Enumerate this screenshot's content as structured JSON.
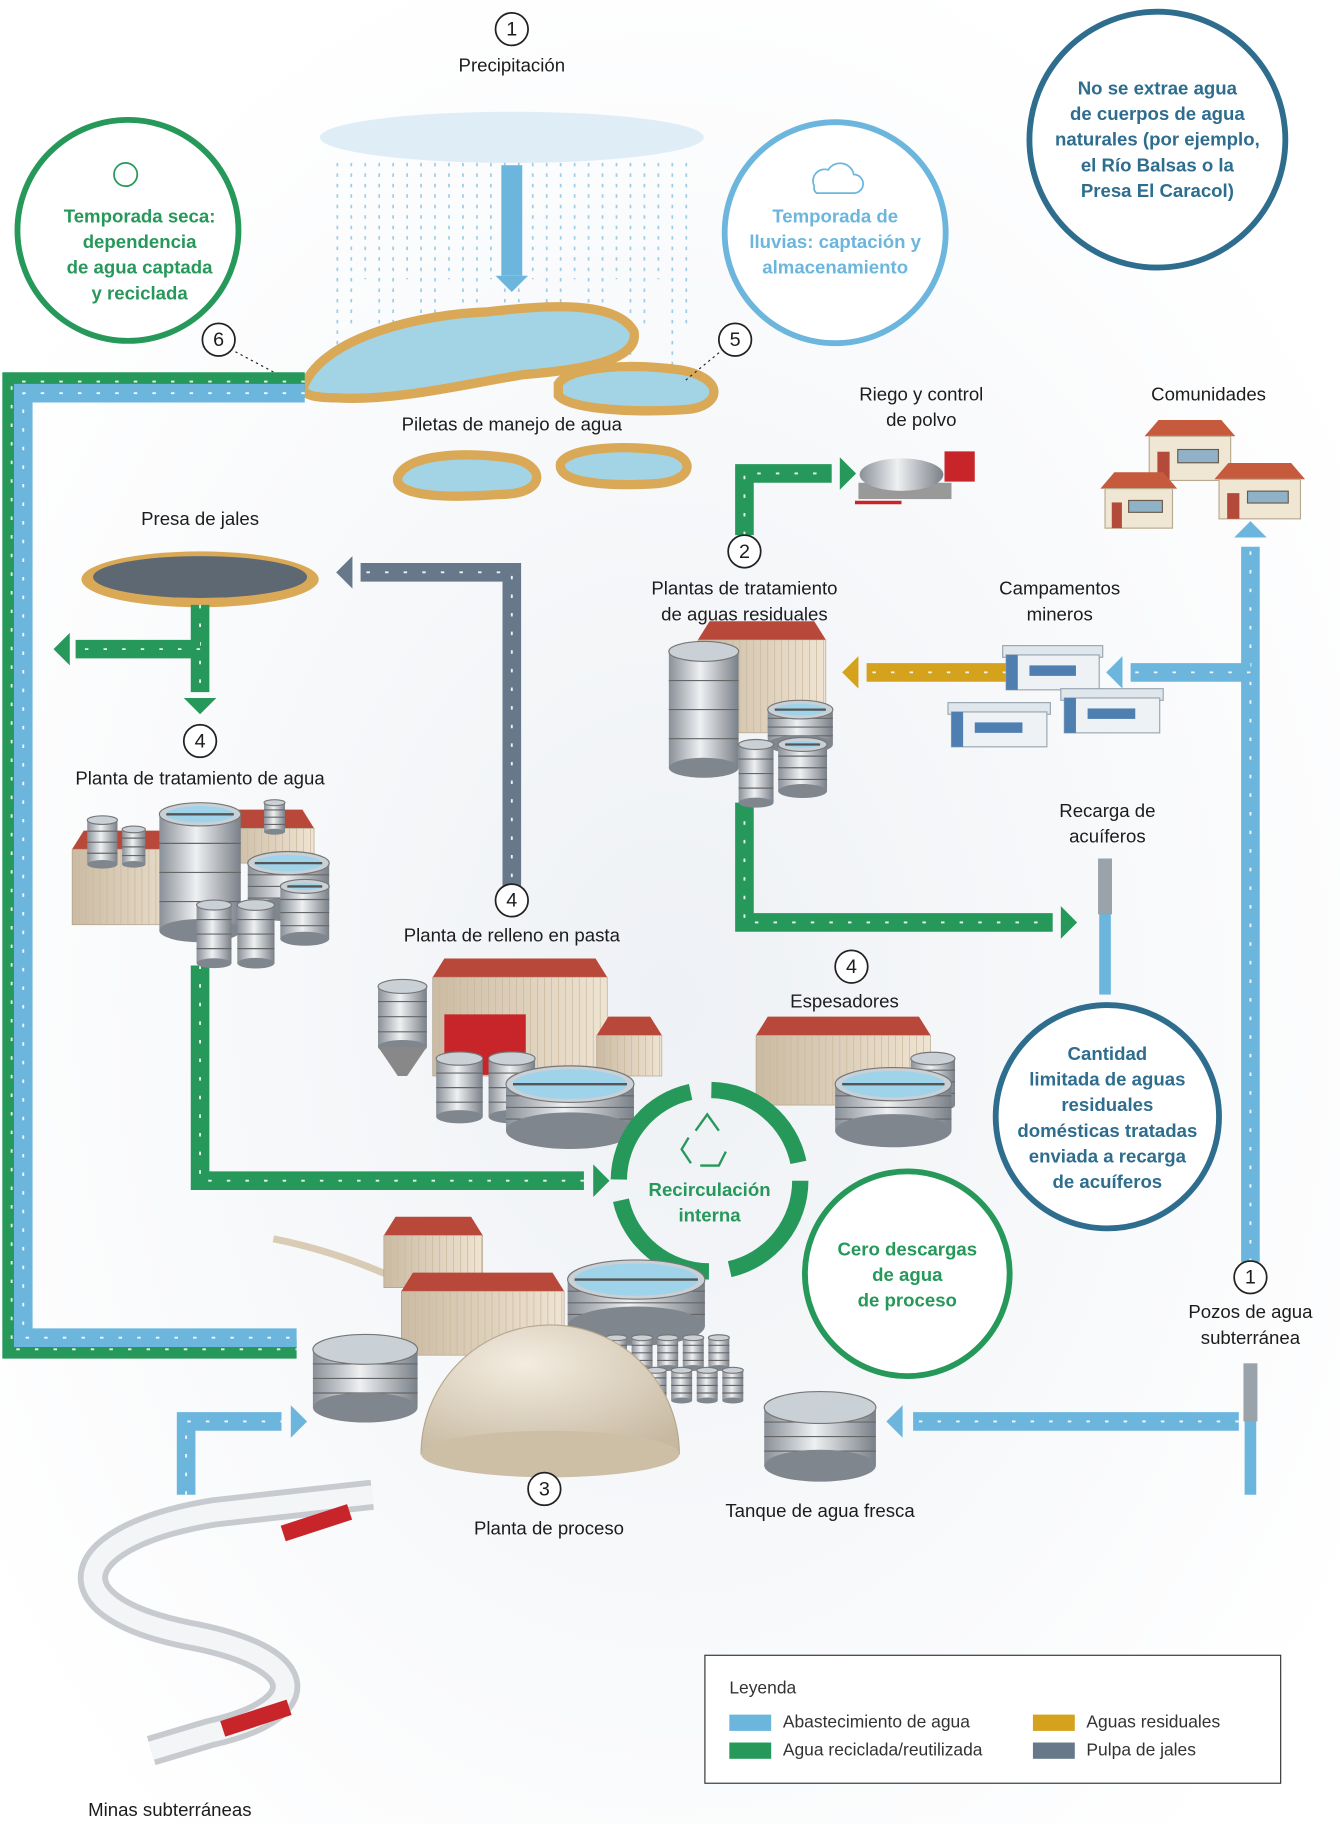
{
  "precipitation": {
    "number": "1",
    "label": "Precipitación"
  },
  "ponds": {
    "label": "Piletas de manejo de agua"
  },
  "dry_season": {
    "number": "6",
    "lines": [
      "Temporada seca:",
      "dependencia",
      "de agua captada",
      "y reciclada"
    ]
  },
  "rainy_season": {
    "number": "5",
    "lines": [
      "Temporada de",
      "lluvias: captación y",
      "almacenamiento"
    ]
  },
  "note_no_extraction": {
    "lines": [
      "No se extrae agua",
      "de cuerpos de agua",
      "naturales (por ejemplo,",
      "el Río Balsas o la",
      "Presa El Caracol)"
    ]
  },
  "irrigation": {
    "lines": [
      "Riego y control",
      "de polvo"
    ]
  },
  "communities": {
    "label": "Comunidades"
  },
  "tailings_dam": {
    "label": "Presa de jales"
  },
  "wastewater_plants": {
    "number": "2",
    "lines": [
      "Plantas de tratamiento",
      "de aguas residuales"
    ]
  },
  "camps": {
    "lines": [
      "Campamentos",
      "mineros"
    ]
  },
  "water_treatment": {
    "number": "4",
    "label": "Planta de tratamiento de agua"
  },
  "recharge": {
    "lines": [
      "Recarga de",
      "acuíferos"
    ]
  },
  "paste_fill": {
    "number": "4",
    "label": "Planta de relleno en pasta"
  },
  "thickeners": {
    "number": "4",
    "label": "Espesadores"
  },
  "note_recharge": {
    "lines": [
      "Cantidad",
      "limitada de aguas",
      "residuales",
      "domésticas tratadas",
      "enviada a recarga",
      "de acuíferos"
    ]
  },
  "recirculation": {
    "lines": [
      "Recirculación",
      "interna"
    ]
  },
  "zero_discharge": {
    "lines": [
      "Cero descargas",
      "de agua",
      "de proceso"
    ]
  },
  "wells": {
    "number": "1",
    "lines": [
      "Pozos de agua",
      "subterránea"
    ]
  },
  "process_plant": {
    "number": "3",
    "label": "Planta de proceso"
  },
  "fresh_tank": {
    "label": "Tanque de agua fresca"
  },
  "mines": {
    "label": "Minas subterráneas"
  },
  "legend": {
    "title": "Leyenda",
    "items": [
      {
        "label": "Abastecimiento de agua",
        "color": "#6cb6de"
      },
      {
        "label": "Agua reciclada/reutilizada",
        "color": "#26985a"
      },
      {
        "label": "Aguas residuales",
        "color": "#d4a21c"
      },
      {
        "label": "Pulpa de jales",
        "color": "#66788a"
      }
    ]
  }
}
